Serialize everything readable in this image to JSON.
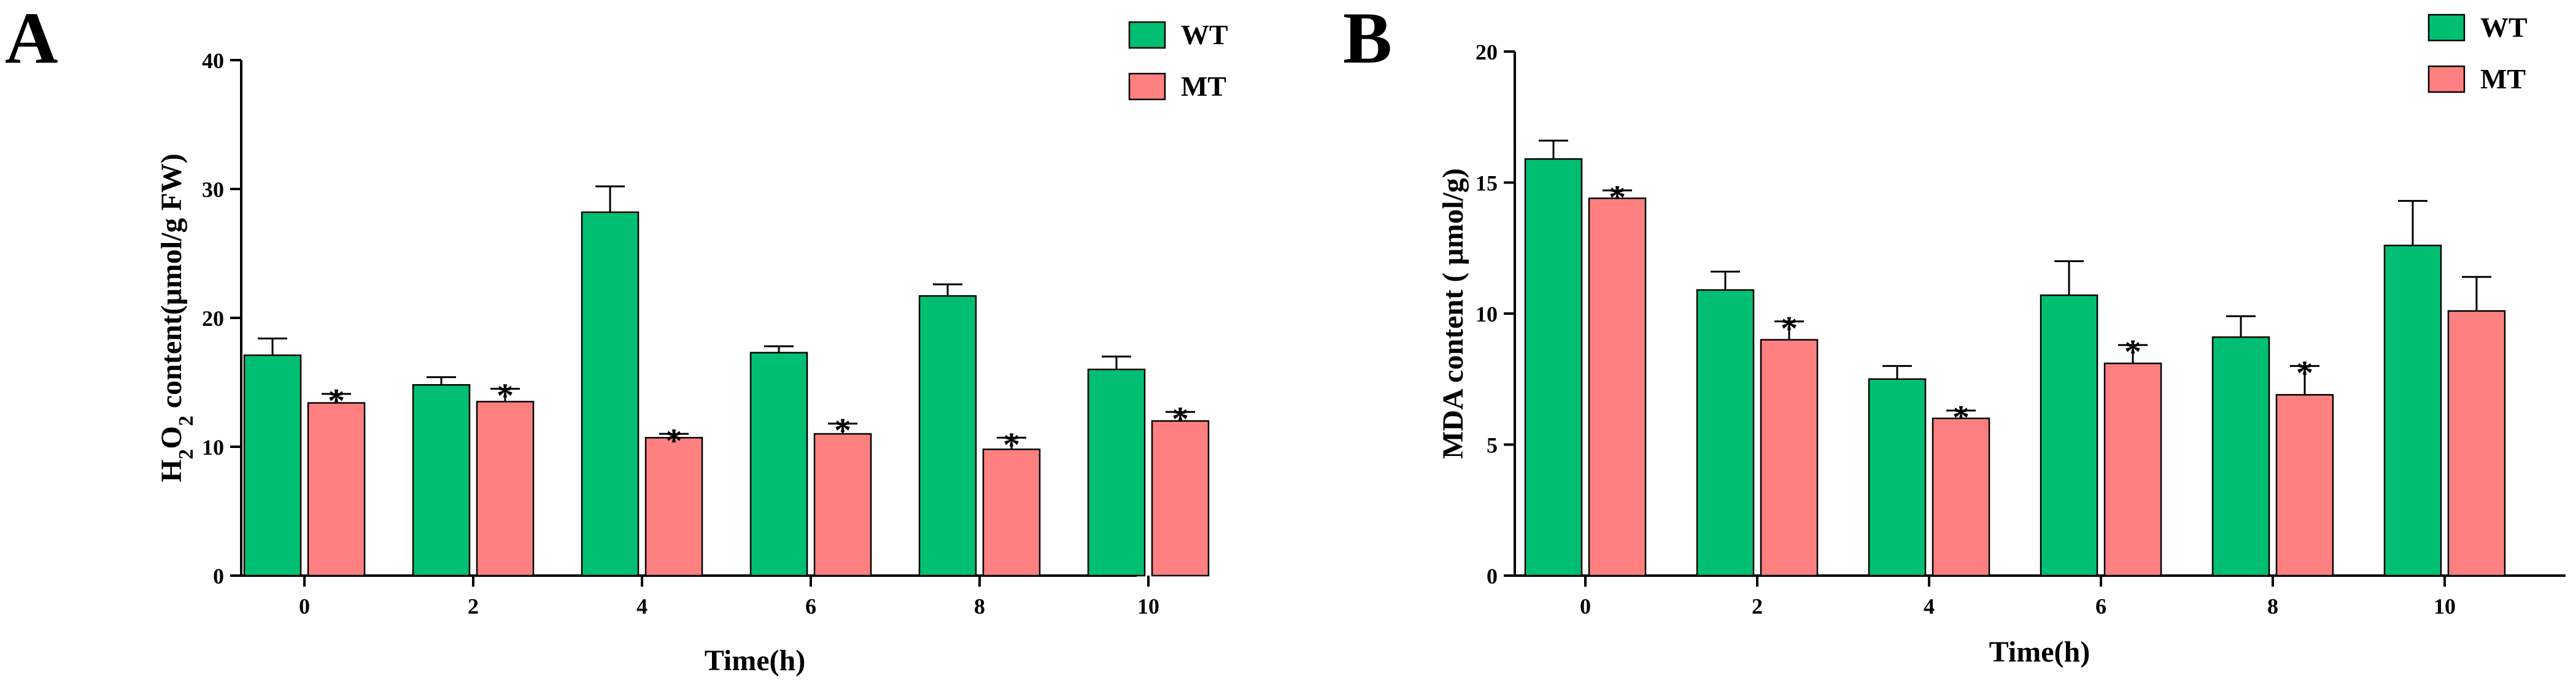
{
  "colors": {
    "wt": "#00BF73",
    "mt": "#FF8080",
    "axis": "#000000"
  },
  "chart_data": [
    {
      "type": "bar",
      "panel": "A",
      "title": "",
      "xlabel": "Time(h)",
      "ylabel": "H2O2 content(μmol/g FW)",
      "ylabel_parts": {
        "pre": "H",
        "sub1": "2",
        "mid": "O",
        "sub2": "2",
        "post": " content(μmol/g FW)"
      },
      "categories": [
        "0",
        "2",
        "4",
        "6",
        "8",
        "10"
      ],
      "ylim": [
        0,
        40
      ],
      "yticks": [
        "0",
        "10",
        "20",
        "30",
        "40"
      ],
      "legend_position": "top-right",
      "series": [
        {
          "name": "WT",
          "values": [
            17.1,
            14.8,
            28.2,
            17.3,
            21.7,
            16.0
          ],
          "errors": [
            1.3,
            0.6,
            2.0,
            0.5,
            0.9,
            1.0
          ],
          "significance": [
            "",
            "",
            "",
            "",
            "",
            ""
          ]
        },
        {
          "name": "MT",
          "values": [
            13.4,
            13.5,
            10.7,
            11.0,
            9.8,
            12.0
          ],
          "errors": [
            0.7,
            1.0,
            0.3,
            0.8,
            0.9,
            0.7
          ],
          "significance": [
            "*",
            "*",
            "*",
            "*",
            "*",
            "*"
          ]
        }
      ]
    },
    {
      "type": "bar",
      "panel": "B",
      "title": "",
      "xlabel": "Time(h)",
      "ylabel": "MDA content ( μmol/g)",
      "categories": [
        "0",
        "2",
        "4",
        "6",
        "8",
        "10"
      ],
      "ylim": [
        0,
        20
      ],
      "yticks": [
        "0",
        "5",
        "10",
        "15",
        "20"
      ],
      "legend_position": "top-right",
      "series": [
        {
          "name": "WT",
          "values": [
            15.9,
            10.9,
            7.5,
            10.7,
            9.1,
            12.6
          ],
          "errors": [
            0.7,
            0.7,
            0.5,
            1.3,
            0.8,
            1.7
          ],
          "significance": [
            "",
            "",
            "",
            "",
            "",
            ""
          ]
        },
        {
          "name": "MT",
          "values": [
            14.4,
            9.0,
            6.0,
            8.1,
            6.9,
            10.1
          ],
          "errors": [
            0.3,
            0.7,
            0.3,
            0.7,
            1.1,
            1.3
          ],
          "significance": [
            "*",
            "*",
            "*",
            "*",
            "*",
            ""
          ]
        }
      ]
    }
  ]
}
